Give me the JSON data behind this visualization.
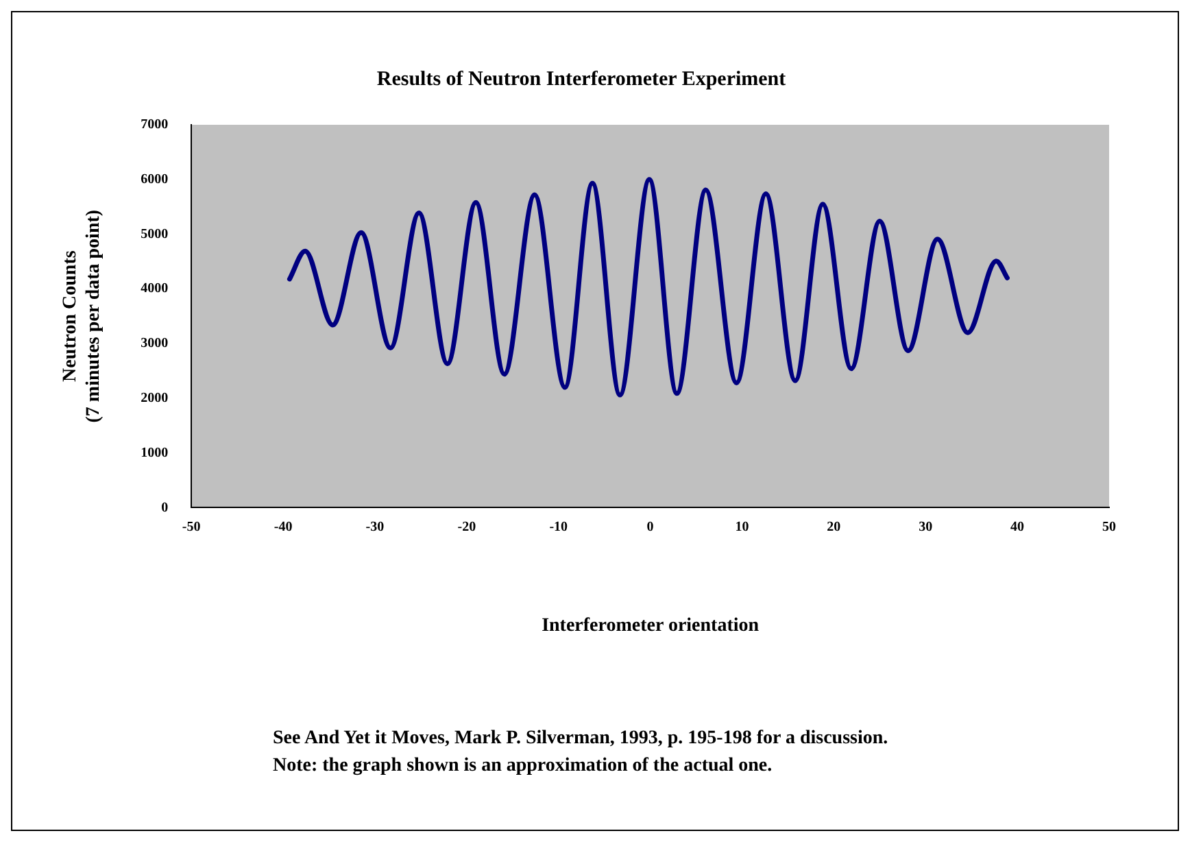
{
  "chart_data": {
    "type": "line",
    "title": "Results of Neutron Interferometer Experiment",
    "xlabel": "Interferometer orientation",
    "ylabel": "Neutron Counts\n(7 minutes per data point)",
    "annotations": [
      "See And Yet it Moves, Mark P. Silverman, 1993,  p. 195-198 for a discussion.",
      "Note: the graph shown is an approximation of the actual one."
    ],
    "series": [
      {
        "color": "#000080",
        "x": [
          -39.3,
          -37.6,
          -34.6,
          -31.5,
          -28.3,
          -25.2,
          -22.1,
          -19.0,
          -15.9,
          -12.6,
          -9.3,
          -6.3,
          -3.3,
          -0.1,
          2.9,
          6.05,
          9.4,
          12.6,
          15.8,
          18.8,
          21.9,
          25.0,
          28.1,
          31.3,
          34.6,
          37.7,
          38.9
        ],
        "values": [
          4180,
          4690,
          3340,
          5030,
          2920,
          5390,
          2630,
          5580,
          2440,
          5720,
          2200,
          5930,
          2060,
          6000,
          2090,
          5810,
          2280,
          5740,
          2320,
          5550,
          2540,
          5240,
          2870,
          4910,
          3200,
          4510,
          4200
        ]
      }
    ],
    "xlim": [
      -50,
      50
    ],
    "xticks": [
      -50,
      -40,
      -30,
      -20,
      -10,
      0,
      10,
      20,
      30,
      40,
      50
    ],
    "ylim": [
      0,
      7000
    ],
    "yticks": [
      0,
      1000,
      2000,
      3000,
      4000,
      5000,
      6000,
      7000
    ],
    "grid": false,
    "legend": false,
    "marker": "none",
    "line_style": "solid"
  }
}
